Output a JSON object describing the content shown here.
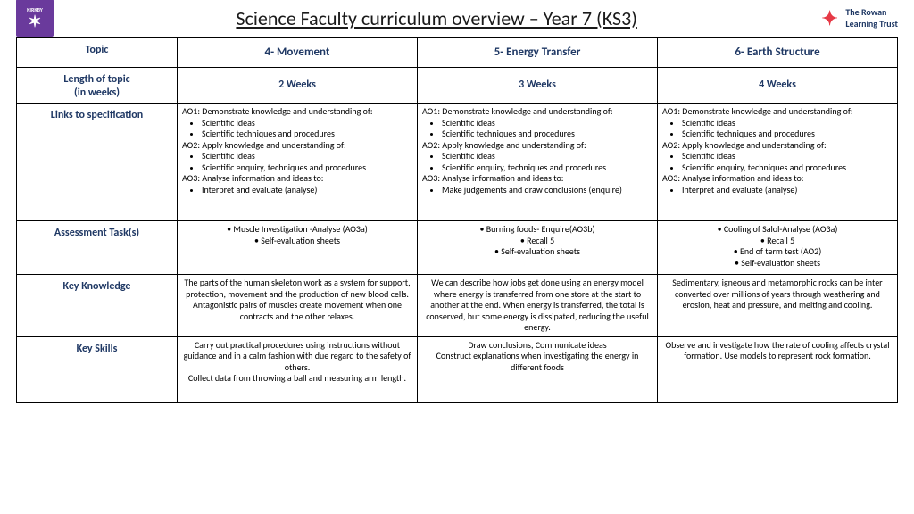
{
  "title": "Science Faculty curriculum overview – Year 7 (KS3)",
  "logoLeft": {
    "top": "KIRKBY",
    "sub": "HIGH SCHOOL"
  },
  "logoRight": {
    "l1": "The Rowan",
    "l2": "Learning Trust"
  },
  "headers": {
    "topic": "Topic",
    "len": "Length of topic",
    "len2": "(in weeks)",
    "links": "Links to specification",
    "assess": "Assessment Task(s)",
    "know": "Key Knowledge",
    "skills": "Key Skills"
  },
  "cols": [
    {
      "topic": "4- Movement",
      "weeks": "2 Weeks",
      "ao1": "AO1: Demonstrate knowledge and understanding of:",
      "ao1a": "Scientific ideas",
      "ao1b": "Scientific techniques and procedures",
      "ao2": "AO2: Apply knowledge and understanding of:",
      "ao2a": "Scientific ideas",
      "ao2b": "Scientific enquiry, techniques and procedures",
      "ao3": "AO3: Analyse information and ideas to:",
      "ao3a": "Interpret and evaluate (analyse)",
      "as1": "• Muscle Investigation -Analyse  (AO3a)",
      "as2": "• Self-evaluation sheets",
      "as3": "",
      "as4": "",
      "know": "The parts of the human skeleton work as a system for support, protection, movement and the production of new blood cells. Antagonistic pairs of muscles create movement when one contracts and the other relaxes.",
      "sk1": "Carry out practical procedures using instructions without guidance and in a calm fashion with due regard to the safety of others.",
      "sk2": "Collect data from throwing a ball and measuring arm length."
    },
    {
      "topic": "5- Energy Transfer",
      "weeks": "3 Weeks",
      "ao1": "AO1: Demonstrate knowledge and understanding of:",
      "ao1a": "Scientific ideas",
      "ao1b": "Scientific techniques and procedures",
      "ao2": "AO2: Apply knowledge and understanding of:",
      "ao2a": "Scientific ideas",
      "ao2b": "Scientific enquiry, techniques and procedures",
      "ao3": "AO3: Analyse information and ideas to:",
      "ao3a": "Make judgements and draw conclusions (enquire)",
      "as1": "• Burning foods-  Enquire(AO3b)",
      "as2": "• Recall 5",
      "as3": "• Self-evaluation sheets",
      "as4": "",
      "know": "We can describe how jobs get done using an energy model where energy is transferred from one store at the start to another at the end. When energy is transferred, the total is conserved, but some energy is dissipated, reducing the useful energy.",
      "sk1": "Draw conclusions, Communicate ideas",
      "sk2": "Construct explanations when investigating the energy in different foods"
    },
    {
      "topic": "6- Earth Structure",
      "weeks": "4 Weeks",
      "ao1": "AO1: Demonstrate knowledge and understanding of:",
      "ao1a": "Scientific ideas",
      "ao1b": "Scientific techniques and procedures",
      "ao2": "AO2: Apply knowledge and understanding of:",
      "ao2a": "Scientific ideas",
      "ao2b": "Scientific enquiry, techniques and procedures",
      "ao3": "AO3: Analyse information and ideas to:",
      "ao3a": "Interpret and evaluate (analyse)",
      "as1": "• Cooling of Salol-Analyse  (AO3a)",
      "as2": "• Recall 5",
      "as3": "• End of term test (AO2)",
      "as4": "• Self-evaluation sheets",
      "know": "Sedimentary, igneous and metamorphic rocks can be inter converted over millions of years through weathering and erosion, heat and pressure, and melting and cooling.",
      "sk1": "Observe and investigate how the rate of cooling affects crystal formation.  Use models to represent rock formation.",
      "sk2": ""
    }
  ]
}
